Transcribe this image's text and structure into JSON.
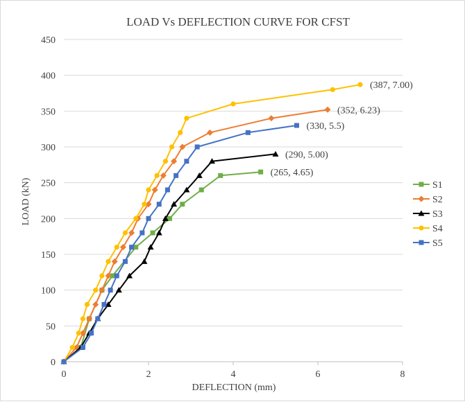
{
  "chart_data": {
    "type": "line",
    "title": "LOAD Vs DEFLECTION CURVE FOR CFST",
    "xlabel": "DEFLECTION (mm)",
    "ylabel": "LOAD (kN)",
    "xlim": [
      0,
      8
    ],
    "ylim": [
      0,
      450
    ],
    "x_ticks": [
      "0",
      "2",
      "4",
      "6",
      "8"
    ],
    "y_ticks": [
      "0",
      "50",
      "100",
      "150",
      "200",
      "250",
      "300",
      "350",
      "400",
      "450"
    ],
    "grid": "horizontal",
    "legend_position": "right",
    "series": [
      {
        "name": "S1",
        "color": "#70ad47",
        "marker": "square",
        "points": [
          [
            0,
            0
          ],
          [
            0.4,
            20
          ],
          [
            0.6,
            60
          ],
          [
            0.9,
            100
          ],
          [
            1.15,
            120
          ],
          [
            1.7,
            160
          ],
          [
            2.1,
            180
          ],
          [
            2.5,
            200
          ],
          [
            2.8,
            220
          ],
          [
            3.25,
            240
          ],
          [
            3.7,
            260
          ],
          [
            4.65,
            265
          ]
        ]
      },
      {
        "name": "S2",
        "color": "#ed7d31",
        "marker": "diamond",
        "points": [
          [
            0,
            0
          ],
          [
            0.3,
            20
          ],
          [
            0.45,
            40
          ],
          [
            0.6,
            60
          ],
          [
            0.75,
            80
          ],
          [
            0.9,
            100
          ],
          [
            1.05,
            120
          ],
          [
            1.2,
            140
          ],
          [
            1.4,
            160
          ],
          [
            1.6,
            180
          ],
          [
            1.75,
            200
          ],
          [
            2.0,
            220
          ],
          [
            2.15,
            240
          ],
          [
            2.35,
            260
          ],
          [
            2.6,
            280
          ],
          [
            2.8,
            300
          ],
          [
            3.45,
            320
          ],
          [
            4.9,
            340
          ],
          [
            6.23,
            352
          ]
        ]
      },
      {
        "name": "S3",
        "color": "#000000",
        "marker": "triangle",
        "points": [
          [
            0,
            0
          ],
          [
            0.4,
            20
          ],
          [
            0.6,
            40
          ],
          [
            0.8,
            60
          ],
          [
            1.05,
            80
          ],
          [
            1.3,
            100
          ],
          [
            1.55,
            120
          ],
          [
            1.9,
            140
          ],
          [
            2.05,
            160
          ],
          [
            2.25,
            180
          ],
          [
            2.4,
            200
          ],
          [
            2.6,
            220
          ],
          [
            2.9,
            240
          ],
          [
            3.2,
            260
          ],
          [
            3.5,
            280
          ],
          [
            5.0,
            290
          ]
        ]
      },
      {
        "name": "S4",
        "color": "#ffc000",
        "marker": "circle",
        "points": [
          [
            0,
            0
          ],
          [
            0.2,
            20
          ],
          [
            0.35,
            40
          ],
          [
            0.45,
            60
          ],
          [
            0.55,
            80
          ],
          [
            0.75,
            100
          ],
          [
            0.9,
            120
          ],
          [
            1.05,
            140
          ],
          [
            1.25,
            160
          ],
          [
            1.45,
            180
          ],
          [
            1.7,
            200
          ],
          [
            1.9,
            220
          ],
          [
            2.0,
            240
          ],
          [
            2.2,
            260
          ],
          [
            2.4,
            280
          ],
          [
            2.55,
            300
          ],
          [
            2.75,
            320
          ],
          [
            2.9,
            340
          ],
          [
            4.0,
            360
          ],
          [
            6.35,
            380
          ],
          [
            7.0,
            387
          ]
        ]
      },
      {
        "name": "S5",
        "color": "#4472c4",
        "marker": "square",
        "points": [
          [
            0,
            0
          ],
          [
            0.45,
            20
          ],
          [
            0.65,
            40
          ],
          [
            0.8,
            60
          ],
          [
            0.95,
            80
          ],
          [
            1.1,
            100
          ],
          [
            1.25,
            120
          ],
          [
            1.45,
            140
          ],
          [
            1.6,
            160
          ],
          [
            1.85,
            180
          ],
          [
            2.0,
            200
          ],
          [
            2.25,
            220
          ],
          [
            2.45,
            240
          ],
          [
            2.65,
            260
          ],
          [
            2.9,
            280
          ],
          [
            3.15,
            300
          ],
          [
            4.35,
            320
          ],
          [
            5.5,
            330
          ]
        ]
      }
    ],
    "annotations": [
      {
        "text": "(387, 7.00)",
        "x": 7.0,
        "y": 387
      },
      {
        "text": "(352, 6.23)",
        "x": 6.23,
        "y": 352
      },
      {
        "text": "(330, 5.5)",
        "x": 5.5,
        "y": 330
      },
      {
        "text": "(290, 5.00)",
        "x": 5.0,
        "y": 290
      },
      {
        "text": "(265, 4.65)",
        "x": 4.65,
        "y": 265
      }
    ]
  }
}
